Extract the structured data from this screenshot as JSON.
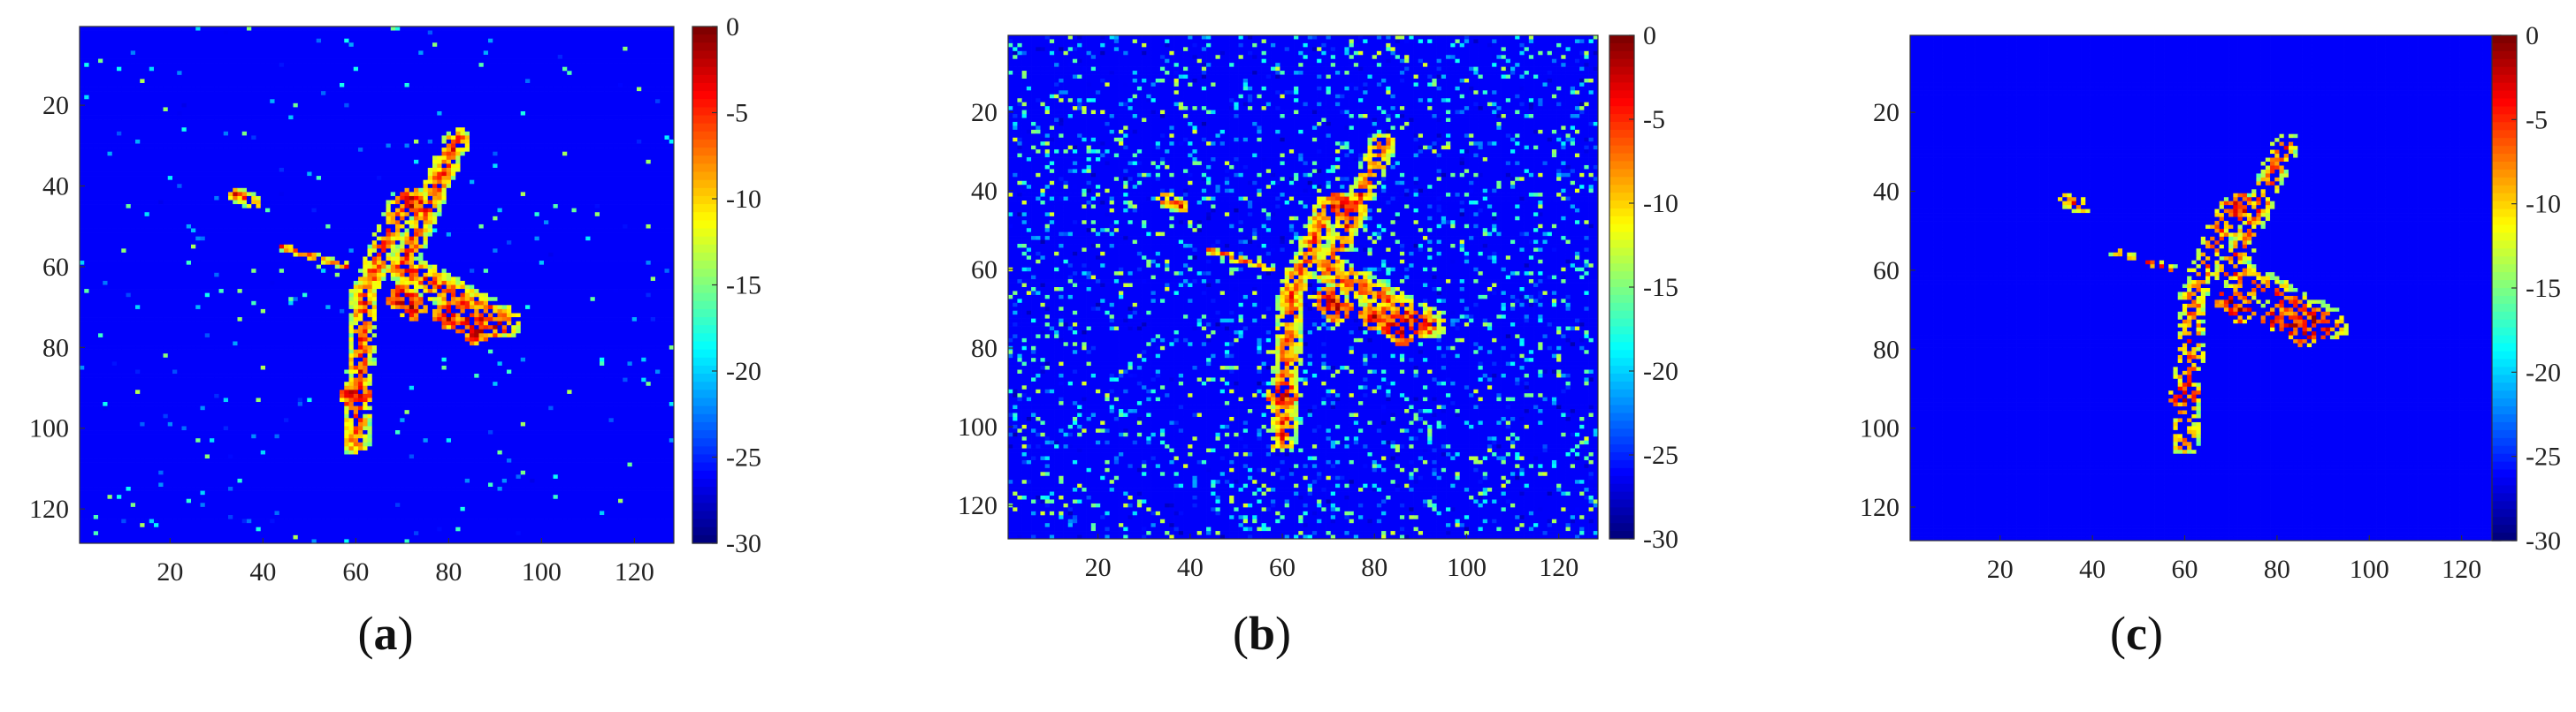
{
  "chart_data": [
    {
      "type": "heatmap",
      "caption": {
        "open": "(",
        "letter": "a",
        "close": ")"
      },
      "noise_level": "moderate",
      "x_ticks": [
        20,
        40,
        60,
        80,
        100,
        120
      ],
      "y_ticks": [
        20,
        40,
        60,
        80,
        100,
        120
      ],
      "xlim": [
        0.5,
        128.5
      ],
      "ylim": [
        0.5,
        128.5
      ],
      "colorbar": {
        "ticks": [
          0,
          -5,
          -10,
          -15,
          -20,
          -25,
          -30
        ],
        "range": [
          -30,
          0
        ],
        "colormap": "jet"
      }
    },
    {
      "type": "heatmap",
      "caption": {
        "open": "(",
        "letter": "b",
        "close": ")"
      },
      "noise_level": "high",
      "x_ticks": [
        20,
        40,
        60,
        80,
        100,
        120
      ],
      "y_ticks": [
        20,
        40,
        60,
        80,
        100,
        120
      ],
      "xlim": [
        0.5,
        128.5
      ],
      "ylim": [
        0.5,
        128.5
      ],
      "colorbar": {
        "ticks": [
          0,
          -5,
          -10,
          -15,
          -20,
          -25,
          -30
        ],
        "range": [
          -30,
          0
        ],
        "colormap": "jet"
      }
    },
    {
      "type": "heatmap",
      "caption": {
        "open": "(",
        "letter": "c",
        "close": ")"
      },
      "noise_level": "none",
      "x_ticks": [
        20,
        40,
        60,
        80,
        100,
        120
      ],
      "y_ticks": [
        20,
        40,
        60,
        80,
        100,
        120
      ],
      "xlim": [
        0.5,
        128.5
      ],
      "ylim": [
        0.5,
        128.5
      ],
      "colorbar": {
        "ticks": [
          0,
          -5,
          -10,
          -15,
          -20,
          -25,
          -30
        ],
        "range": [
          -30,
          0
        ],
        "colormap": "jet"
      }
    }
  ]
}
